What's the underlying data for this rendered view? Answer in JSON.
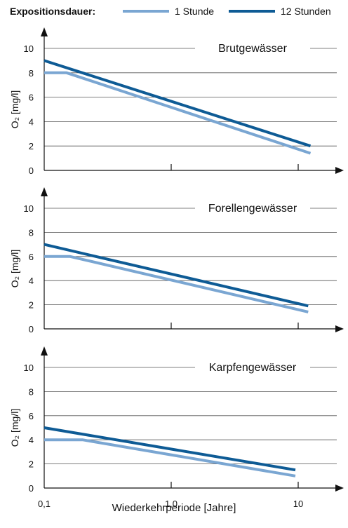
{
  "legend": {
    "title": "Expositionsdauer:",
    "items": [
      {
        "label": "1 Stunde",
        "color": "#7aa6d2"
      },
      {
        "label": "12 Stunden",
        "color": "#0e5b95"
      }
    ]
  },
  "chart_data": [
    {
      "type": "line",
      "title": "Brutgewässer",
      "ylabel": "O₂ [mg/l]",
      "ylim": [
        0,
        10
      ],
      "yticks": [
        0,
        2,
        4,
        6,
        8,
        10
      ],
      "xscale": "log",
      "xlim": [
        0.1,
        20
      ],
      "series": [
        {
          "name": "1 Stunde",
          "color": "#7aa6d2",
          "x": [
            0.1,
            0.15,
            12.5
          ],
          "values": [
            8,
            8,
            1.4
          ]
        },
        {
          "name": "12 Stunden",
          "color": "#0e5b95",
          "x": [
            0.1,
            12.5
          ],
          "values": [
            9,
            2
          ]
        }
      ]
    },
    {
      "type": "line",
      "title": "Forellengewässer",
      "ylabel": "O₂ [mg/l]",
      "ylim": [
        0,
        10
      ],
      "yticks": [
        0,
        2,
        4,
        6,
        8,
        10
      ],
      "xscale": "log",
      "xlim": [
        0.1,
        20
      ],
      "series": [
        {
          "name": "1 Stunde",
          "color": "#7aa6d2",
          "x": [
            0.1,
            0.16,
            12
          ],
          "values": [
            6,
            6,
            1.4
          ]
        },
        {
          "name": "12 Stunden",
          "color": "#0e5b95",
          "x": [
            0.1,
            12
          ],
          "values": [
            7,
            1.9
          ]
        }
      ]
    },
    {
      "type": "line",
      "title": "Karpfengewässer",
      "ylabel": "O₂ [mg/l]",
      "ylim": [
        0,
        10
      ],
      "yticks": [
        0,
        2,
        4,
        6,
        8,
        10
      ],
      "xscale": "log",
      "xlim": [
        0.1,
        20
      ],
      "xticks": [
        {
          "value": 0.1,
          "label": "0,1"
        },
        {
          "value": 1,
          "label": "1,0"
        },
        {
          "value": 10,
          "label": "10"
        }
      ],
      "xlabel": "Wiederkehrperiode [Jahre]",
      "series": [
        {
          "name": "1 Stunde",
          "color": "#7aa6d2",
          "x": [
            0.1,
            0.2,
            9.5
          ],
          "values": [
            4,
            4,
            1
          ]
        },
        {
          "name": "12 Stunden",
          "color": "#0e5b95",
          "x": [
            0.1,
            9.5
          ],
          "values": [
            5,
            1.5
          ]
        }
      ]
    }
  ]
}
